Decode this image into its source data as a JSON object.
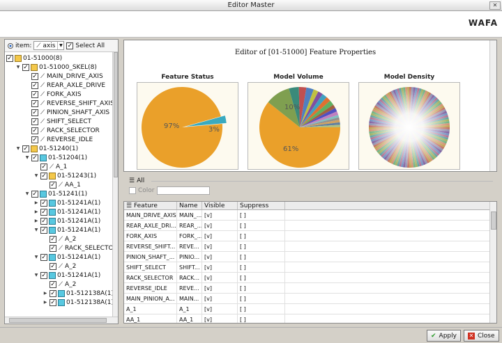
{
  "window": {
    "title": "Editor Master"
  },
  "header": {
    "logo": "WAFA"
  },
  "left": {
    "item_label": "item:",
    "item_value": "axis",
    "select_all_label": "Select All",
    "tree": [
      {
        "depth": 0,
        "type": "asm",
        "label": "01-51000(8)",
        "expanded": null
      },
      {
        "depth": 1,
        "type": "asm",
        "label": "01-51000_SKEL(8)",
        "expanded": true
      },
      {
        "depth": 2,
        "type": "axis",
        "label": "MAIN_DRIVE_AXIS"
      },
      {
        "depth": 2,
        "type": "axis",
        "label": "REAR_AXLE_DRIVE"
      },
      {
        "depth": 2,
        "type": "axis",
        "label": "FORK_AXIS"
      },
      {
        "depth": 2,
        "type": "axis",
        "label": "REVERSE_SHIFT_AXIS"
      },
      {
        "depth": 2,
        "type": "axis",
        "label": "PINION_SHAFT_AXIS"
      },
      {
        "depth": 2,
        "type": "axis",
        "label": "SHIFT_SELECT"
      },
      {
        "depth": 2,
        "type": "axis",
        "label": "RACK_SELECTOR"
      },
      {
        "depth": 2,
        "type": "axis",
        "label": "REVERSE_IDLE"
      },
      {
        "depth": 1,
        "type": "asm",
        "label": "01-51240(1)",
        "expanded": true
      },
      {
        "depth": 2,
        "type": "part",
        "label": "01-51204(1)",
        "expanded": true
      },
      {
        "depth": 3,
        "type": "axis",
        "label": "A_1"
      },
      {
        "depth": 3,
        "type": "asm",
        "label": "01-51243(1)",
        "expanded": true
      },
      {
        "depth": 4,
        "type": "axis",
        "label": "AA_1"
      },
      {
        "depth": 2,
        "type": "part",
        "label": "01-51241(1)",
        "expanded": true
      },
      {
        "depth": 3,
        "type": "part",
        "label": "01-51241A(1)",
        "expanded": false
      },
      {
        "depth": 3,
        "type": "part",
        "label": "01-51241A(1)",
        "expanded": false
      },
      {
        "depth": 3,
        "type": "part",
        "label": "01-51241A(1)",
        "expanded": false
      },
      {
        "depth": 3,
        "type": "part",
        "label": "01-51241A(1)",
        "expanded": true
      },
      {
        "depth": 4,
        "type": "axis",
        "label": "A_2"
      },
      {
        "depth": 4,
        "type": "axis",
        "label": "RACK_SELECTOR"
      },
      {
        "depth": 3,
        "type": "part",
        "label": "01-51241A(1)",
        "expanded": true
      },
      {
        "depth": 4,
        "type": "axis",
        "label": "A_2"
      },
      {
        "depth": 3,
        "type": "part",
        "label": "01-51241A(1)",
        "expanded": true
      },
      {
        "depth": 4,
        "type": "axis",
        "label": "A_2"
      },
      {
        "depth": 4,
        "type": "part",
        "label": "01-512138A(1)",
        "expanded": false
      },
      {
        "depth": 4,
        "type": "part",
        "label": "01-512138A(1)",
        "expanded": false
      }
    ]
  },
  "charts": {
    "title": "Editor of [01-51000] Feature Properties",
    "status_title": "Feature Status",
    "volume_title": "Model Volume",
    "density_title": "Model Density",
    "status_pct_major": "97%",
    "status_pct_minor": "3%",
    "volume_pct_major": "61%",
    "volume_pct_minor": "10%"
  },
  "chart_data": [
    {
      "type": "pie",
      "title": "Feature Status",
      "values": [
        97,
        3
      ],
      "colors": [
        "#eaa02a",
        "#3aaac0"
      ]
    },
    {
      "type": "pie",
      "title": "Model Volume",
      "values": [
        61,
        10,
        4,
        3,
        3,
        2,
        2,
        2,
        2,
        2,
        1.5,
        1.5,
        1.5,
        1,
        1,
        1,
        1,
        1
      ],
      "colors": [
        "#eaa02a",
        "#7f9f50",
        "#3a8a7a",
        "#c05050",
        "#5080c0",
        "#c0c040",
        "#8050a0",
        "#40a0c0",
        "#e07030",
        "#60b060",
        "#a06040",
        "#5050c0",
        "#c080c0",
        "#80c0c0",
        "#909090",
        "#d0a060",
        "#6080a0",
        "#b0c080"
      ]
    },
    {
      "type": "pie",
      "title": "Model Density"
    }
  ],
  "filter": {
    "all_label": "All",
    "color_label": "Color"
  },
  "table": {
    "headers": [
      "Feature",
      "Name",
      "Visible",
      "Suppress"
    ],
    "rows": [
      [
        "MAIN_DRIVE_AXIS",
        "MAIN_...",
        "[v]",
        "[ ]"
      ],
      [
        "REAR_AXLE_DRI...",
        "REAR_...",
        "[v]",
        "[ ]"
      ],
      [
        "FORK_AXIS",
        "FORK_...",
        "[v]",
        "[ ]"
      ],
      [
        "REVERSE_SHIFT...",
        "REVE...",
        "[v]",
        "[ ]"
      ],
      [
        "PINION_SHAFT_...",
        "PINIO...",
        "[v]",
        "[ ]"
      ],
      [
        "SHIFT_SELECT",
        "SHIFT...",
        "[v]",
        "[ ]"
      ],
      [
        "RACK_SELECTOR",
        "RACK...",
        "[v]",
        "[ ]"
      ],
      [
        "REVERSE_IDLE",
        "REVE...",
        "[v]",
        "[ ]"
      ],
      [
        "MAIN_PINION_A...",
        "MAIN...",
        "[v]",
        "[ ]"
      ],
      [
        "A_1",
        "A_1",
        "[v]",
        "[ ]"
      ],
      [
        "AA_1",
        "AA_1",
        "[v]",
        "[ ]"
      ]
    ]
  },
  "footer": {
    "apply_label": "Apply",
    "close_label": "Close"
  }
}
